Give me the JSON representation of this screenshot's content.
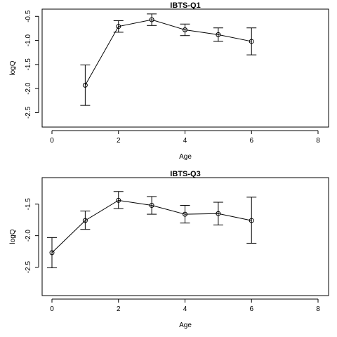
{
  "chart_data": [
    {
      "type": "line",
      "title": "IBTS-Q1",
      "xlabel": "Age",
      "ylabel": "logQ",
      "xlim": [
        0,
        8
      ],
      "ylim": [
        -2.8,
        -0.35
      ],
      "xticks": [
        0,
        2,
        4,
        6,
        8
      ],
      "yticks": [
        -2.5,
        -2.0,
        -1.5,
        -1.0,
        -0.5
      ],
      "ytick_labels": [
        "-2.5",
        "-2.0",
        "-1.5",
        "-1.0",
        "-0.5"
      ],
      "grid": false,
      "series": [
        {
          "x": [
            1,
            2,
            3,
            4,
            5,
            6
          ],
          "y": [
            -1.93,
            -0.71,
            -0.57,
            -0.78,
            -0.88,
            -1.02
          ],
          "lower": [
            -2.35,
            -0.83,
            -0.69,
            -0.9,
            -1.02,
            -1.3
          ],
          "upper": [
            -1.51,
            -0.59,
            -0.45,
            -0.66,
            -0.74,
            -0.74
          ]
        }
      ]
    },
    {
      "type": "line",
      "title": "IBTS-Q3",
      "xlabel": "Age",
      "ylabel": "logQ",
      "xlim": [
        0,
        8
      ],
      "ylim": [
        -2.95,
        -1.08
      ],
      "xticks": [
        0,
        2,
        4,
        6,
        8
      ],
      "yticks": [
        -2.5,
        -2.0,
        -1.5
      ],
      "ytick_labels": [
        "-2.5",
        "-2.0",
        "-1.5"
      ],
      "grid": false,
      "series": [
        {
          "x": [
            0,
            1,
            2,
            3,
            4,
            5,
            6
          ],
          "y": [
            -2.27,
            -1.76,
            -1.44,
            -1.52,
            -1.66,
            -1.65,
            -1.76
          ],
          "lower": [
            -2.51,
            -1.9,
            -1.57,
            -1.66,
            -1.8,
            -1.83,
            -2.12
          ],
          "upper": [
            -2.03,
            -1.61,
            -1.3,
            -1.38,
            -1.52,
            -1.47,
            -1.39
          ]
        }
      ]
    }
  ]
}
